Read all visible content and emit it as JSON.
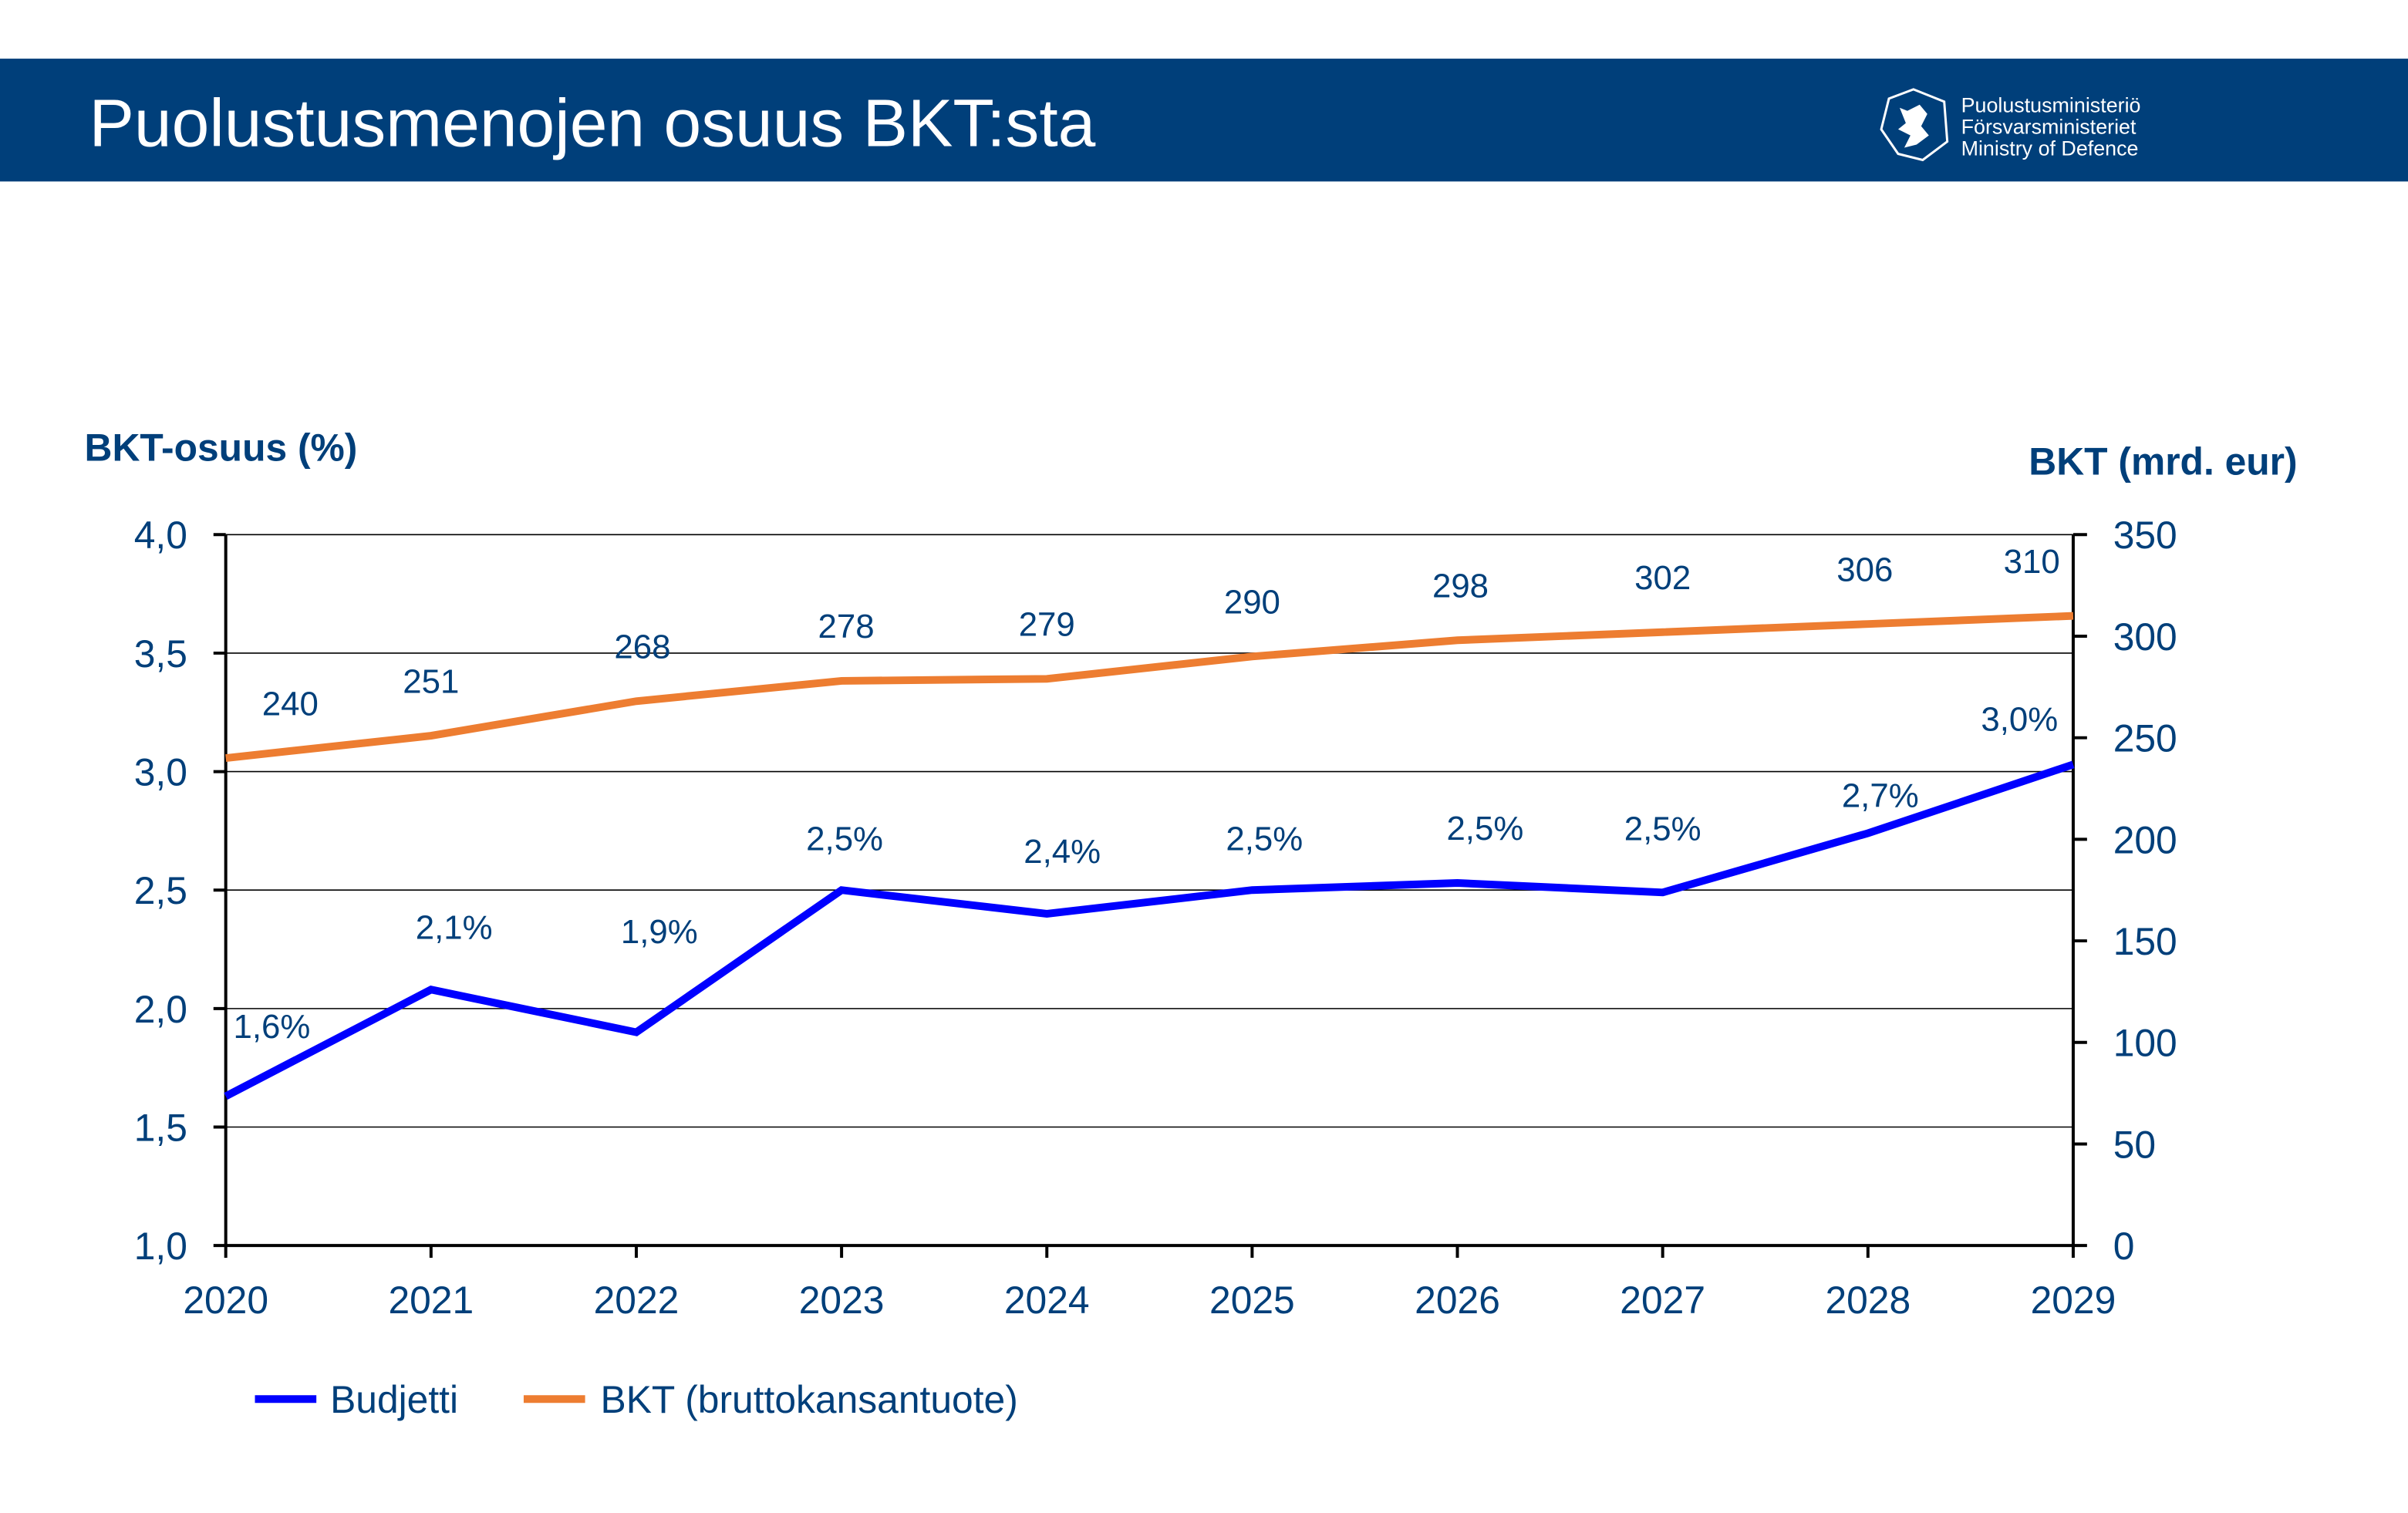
{
  "header": {
    "title": "Puolustusmenojen osuus BKT:sta",
    "logo_lines": [
      "Puolustusministeriö",
      "Försvarsministeriet",
      "Ministry of Defence"
    ],
    "background": "#003F7A"
  },
  "chart_data": {
    "type": "line",
    "title": "",
    "categories": [
      "2020",
      "2021",
      "2022",
      "2023",
      "2024",
      "2025",
      "2026",
      "2027",
      "2028",
      "2029"
    ],
    "y_left": {
      "label": "BKT-osuus (%)",
      "range": [
        1.0,
        4.0
      ],
      "ticks": [
        "1,0",
        "1,5",
        "2,0",
        "2,5",
        "3,0",
        "3,5",
        "4,0"
      ],
      "tick_values": [
        1.0,
        1.5,
        2.0,
        2.5,
        3.0,
        3.5,
        4.0
      ]
    },
    "y_right": {
      "label": "BKT (mrd. eur)",
      "range": [
        0,
        350
      ],
      "ticks": [
        "0",
        "50",
        "100",
        "150",
        "200",
        "250",
        "300",
        "350"
      ],
      "tick_values": [
        0,
        50,
        100,
        150,
        200,
        250,
        300,
        350
      ]
    },
    "grid": true,
    "legend_position": "bottom-left",
    "series": [
      {
        "name": "Budjetti",
        "axis": "left",
        "color": "#0000FF",
        "values": [
          1.63,
          2.08,
          1.9,
          2.5,
          2.4,
          2.5,
          2.53,
          2.49,
          2.74,
          3.03
        ],
        "labels": [
          "1,6%",
          "2,1%",
          "1,9%",
          "2,5%",
          "2,4%",
          "2,5%",
          "2,5%",
          "2,5%",
          "2,7%",
          "3,0%"
        ]
      },
      {
        "name": "BKT (bruttokansantuote)",
        "axis": "right",
        "color": "#ED7D31",
        "values": [
          240,
          251,
          268,
          278,
          279,
          290,
          298,
          302,
          306,
          310
        ],
        "labels": [
          "240",
          "251",
          "268",
          "278",
          "279",
          "290",
          "298",
          "302",
          "306",
          "310"
        ]
      }
    ],
    "text_color": "#003F7A"
  }
}
